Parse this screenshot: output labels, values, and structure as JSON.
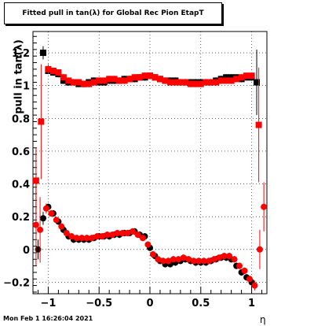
{
  "chart_data": {
    "type": "scatter",
    "title": "Fitted pull in tan(λ) for Global Rec Pion EtapT",
    "xlabel": "η",
    "ylabel": "pull in tan(λ)",
    "xlim": [
      -1.15,
      1.15
    ],
    "ylim": [
      -0.27,
      1.33
    ],
    "grid": true,
    "x_ticks": [
      -1,
      -0.5,
      0,
      0.5,
      1
    ],
    "x_tick_labels": [
      "−1",
      "−0.5",
      "0",
      "0.5",
      "1"
    ],
    "y_ticks": [
      -0.2,
      0,
      0.2,
      0.4,
      0.6,
      0.8,
      1.0,
      1.2
    ],
    "y_tick_labels": [
      "−0.2",
      "0",
      "0.2",
      "0.4",
      "0.6",
      "0.8",
      "1",
      "1.2"
    ],
    "series_colors": [
      "#000000",
      "#ff0000"
    ],
    "series": [
      {
        "marker": "square",
        "color": "#000000",
        "points": [
          [
            -1.05,
            1.2
          ],
          [
            -1.0,
            1.09
          ],
          [
            -0.95,
            1.08
          ],
          [
            -0.9,
            1.07
          ],
          [
            -0.85,
            1.03
          ],
          [
            -0.8,
            1.02
          ],
          [
            -0.75,
            1.02
          ],
          [
            -0.7,
            1.01
          ],
          [
            -0.65,
            1.01
          ],
          [
            -0.6,
            1.02
          ],
          [
            -0.55,
            1.03
          ],
          [
            -0.5,
            1.02
          ],
          [
            -0.45,
            1.02
          ],
          [
            -0.4,
            1.03
          ],
          [
            -0.35,
            1.03
          ],
          [
            -0.3,
            1.03
          ],
          [
            -0.25,
            1.04
          ],
          [
            -0.2,
            1.04
          ],
          [
            -0.15,
            1.04
          ],
          [
            -0.1,
            1.05
          ],
          [
            -0.05,
            1.05
          ],
          [
            0.0,
            1.06
          ],
          [
            0.05,
            1.05
          ],
          [
            0.1,
            1.04
          ],
          [
            0.15,
            1.03
          ],
          [
            0.2,
            1.03
          ],
          [
            0.25,
            1.03
          ],
          [
            0.3,
            1.02
          ],
          [
            0.35,
            1.02
          ],
          [
            0.4,
            1.02
          ],
          [
            0.45,
            1.02
          ],
          [
            0.5,
            1.02
          ],
          [
            0.55,
            1.02
          ],
          [
            0.6,
            1.02
          ],
          [
            0.65,
            1.03
          ],
          [
            0.7,
            1.04
          ],
          [
            0.75,
            1.05
          ],
          [
            0.8,
            1.05
          ],
          [
            0.85,
            1.05
          ],
          [
            0.9,
            1.04
          ],
          [
            0.95,
            1.05
          ],
          [
            1.0,
            1.05
          ],
          [
            1.05,
            1.02
          ]
        ],
        "errors": [
          0.04,
          0.02,
          0.02,
          0.02,
          0.02,
          0.02,
          0.02,
          0.02,
          0.02,
          0.02,
          0.02,
          0.02,
          0.02,
          0.02,
          0.02,
          0.02,
          0.02,
          0.02,
          0.02,
          0.02,
          0.02,
          0.02,
          0.02,
          0.02,
          0.02,
          0.02,
          0.02,
          0.02,
          0.02,
          0.02,
          0.02,
          0.02,
          0.02,
          0.02,
          0.02,
          0.02,
          0.02,
          0.02,
          0.02,
          0.02,
          0.02,
          0.02,
          0.2
        ]
      },
      {
        "marker": "square",
        "color": "#ff0000",
        "points": [
          [
            -1.12,
            0.42
          ],
          [
            -1.07,
            0.78
          ],
          [
            -1.0,
            1.1
          ],
          [
            -0.95,
            1.09
          ],
          [
            -0.9,
            1.08
          ],
          [
            -0.85,
            1.05
          ],
          [
            -0.8,
            1.03
          ],
          [
            -0.75,
            1.02
          ],
          [
            -0.7,
            1.02
          ],
          [
            -0.65,
            1.01
          ],
          [
            -0.6,
            1.01
          ],
          [
            -0.55,
            1.02
          ],
          [
            -0.5,
            1.03
          ],
          [
            -0.45,
            1.03
          ],
          [
            -0.4,
            1.04
          ],
          [
            -0.35,
            1.04
          ],
          [
            -0.3,
            1.03
          ],
          [
            -0.25,
            1.03
          ],
          [
            -0.2,
            1.04
          ],
          [
            -0.15,
            1.05
          ],
          [
            -0.1,
            1.05
          ],
          [
            -0.05,
            1.06
          ],
          [
            0.0,
            1.06
          ],
          [
            0.05,
            1.05
          ],
          [
            0.1,
            1.04
          ],
          [
            0.15,
            1.03
          ],
          [
            0.2,
            1.02
          ],
          [
            0.25,
            1.02
          ],
          [
            0.3,
            1.02
          ],
          [
            0.35,
            1.02
          ],
          [
            0.4,
            1.01
          ],
          [
            0.45,
            1.01
          ],
          [
            0.5,
            1.01
          ],
          [
            0.55,
            1.02
          ],
          [
            0.6,
            1.02
          ],
          [
            0.65,
            1.02
          ],
          [
            0.7,
            1.03
          ],
          [
            0.75,
            1.03
          ],
          [
            0.8,
            1.03
          ],
          [
            0.85,
            1.04
          ],
          [
            0.9,
            1.05
          ],
          [
            0.95,
            1.06
          ],
          [
            1.0,
            1.06
          ],
          [
            1.07,
            0.76
          ]
        ],
        "errors": [
          0.2,
          0.35,
          0.03,
          0.02,
          0.02,
          0.02,
          0.02,
          0.02,
          0.02,
          0.02,
          0.02,
          0.02,
          0.02,
          0.02,
          0.02,
          0.02,
          0.02,
          0.02,
          0.02,
          0.02,
          0.02,
          0.02,
          0.02,
          0.02,
          0.02,
          0.02,
          0.02,
          0.02,
          0.02,
          0.02,
          0.02,
          0.02,
          0.02,
          0.02,
          0.02,
          0.02,
          0.02,
          0.02,
          0.02,
          0.02,
          0.02,
          0.02,
          0.02,
          0.35
        ]
      },
      {
        "marker": "circle",
        "color": "#000000",
        "points": [
          [
            -1.1,
            0.0
          ],
          [
            -1.05,
            0.19
          ],
          [
            -1.0,
            0.26
          ],
          [
            -0.95,
            0.22
          ],
          [
            -0.9,
            0.17
          ],
          [
            -0.85,
            0.12
          ],
          [
            -0.8,
            0.08
          ],
          [
            -0.75,
            0.06
          ],
          [
            -0.7,
            0.06
          ],
          [
            -0.65,
            0.06
          ],
          [
            -0.6,
            0.06
          ],
          [
            -0.55,
            0.07
          ],
          [
            -0.5,
            0.08
          ],
          [
            -0.45,
            0.08
          ],
          [
            -0.4,
            0.08
          ],
          [
            -0.35,
            0.09
          ],
          [
            -0.3,
            0.09
          ],
          [
            -0.25,
            0.1
          ],
          [
            -0.2,
            0.1
          ],
          [
            -0.15,
            0.11
          ],
          [
            -0.1,
            0.09
          ],
          [
            -0.05,
            0.08
          ],
          [
            0.0,
            0.01
          ],
          [
            0.05,
            -0.04
          ],
          [
            0.1,
            -0.07
          ],
          [
            0.15,
            -0.09
          ],
          [
            0.2,
            -0.09
          ],
          [
            0.25,
            -0.08
          ],
          [
            0.3,
            -0.07
          ],
          [
            0.35,
            -0.06
          ],
          [
            0.4,
            -0.07
          ],
          [
            0.45,
            -0.08
          ],
          [
            0.5,
            -0.08
          ],
          [
            0.55,
            -0.08
          ],
          [
            0.6,
            -0.07
          ],
          [
            0.65,
            -0.06
          ],
          [
            0.7,
            -0.05
          ],
          [
            0.75,
            -0.05
          ],
          [
            0.8,
            -0.06
          ],
          [
            0.85,
            -0.1
          ],
          [
            0.9,
            -0.14
          ],
          [
            0.95,
            -0.17
          ],
          [
            1.0,
            -0.2
          ]
        ],
        "errors": [
          0.06,
          0.04,
          0.02,
          0.02,
          0.02,
          0.02,
          0.02,
          0.02,
          0.02,
          0.02,
          0.02,
          0.02,
          0.02,
          0.02,
          0.02,
          0.02,
          0.02,
          0.02,
          0.02,
          0.02,
          0.02,
          0.02,
          0.02,
          0.02,
          0.02,
          0.02,
          0.02,
          0.02,
          0.02,
          0.02,
          0.02,
          0.02,
          0.02,
          0.02,
          0.02,
          0.02,
          0.02,
          0.02,
          0.02,
          0.02,
          0.02,
          0.02,
          0.03
        ]
      },
      {
        "marker": "circle",
        "color": "#ff0000",
        "points": [
          [
            -1.12,
            0.15
          ],
          [
            -1.08,
            0.12
          ],
          [
            -1.02,
            0.25
          ],
          [
            -0.97,
            0.22
          ],
          [
            -0.92,
            0.18
          ],
          [
            -0.87,
            0.14
          ],
          [
            -0.82,
            0.1
          ],
          [
            -0.77,
            0.08
          ],
          [
            -0.72,
            0.07
          ],
          [
            -0.67,
            0.07
          ],
          [
            -0.62,
            0.07
          ],
          [
            -0.57,
            0.07
          ],
          [
            -0.52,
            0.08
          ],
          [
            -0.47,
            0.08
          ],
          [
            -0.42,
            0.09
          ],
          [
            -0.37,
            0.09
          ],
          [
            -0.32,
            0.1
          ],
          [
            -0.27,
            0.1
          ],
          [
            -0.22,
            0.1
          ],
          [
            -0.17,
            0.11
          ],
          [
            -0.12,
            0.09
          ],
          [
            -0.07,
            0.07
          ],
          [
            -0.02,
            0.03
          ],
          [
            0.03,
            -0.03
          ],
          [
            0.08,
            -0.06
          ],
          [
            0.13,
            -0.07
          ],
          [
            0.18,
            -0.07
          ],
          [
            0.23,
            -0.06
          ],
          [
            0.28,
            -0.06
          ],
          [
            0.33,
            -0.05
          ],
          [
            0.38,
            -0.06
          ],
          [
            0.43,
            -0.07
          ],
          [
            0.48,
            -0.07
          ],
          [
            0.53,
            -0.07
          ],
          [
            0.58,
            -0.07
          ],
          [
            0.63,
            -0.06
          ],
          [
            0.68,
            -0.05
          ],
          [
            0.73,
            -0.04
          ],
          [
            0.78,
            -0.04
          ],
          [
            0.83,
            -0.06
          ],
          [
            0.88,
            -0.1
          ],
          [
            0.93,
            -0.13
          ],
          [
            0.98,
            -0.18
          ],
          [
            1.03,
            -0.22
          ],
          [
            1.08,
            0.0
          ],
          [
            1.12,
            0.26
          ]
        ],
        "errors": [
          0.25,
          0.2,
          0.03,
          0.02,
          0.02,
          0.02,
          0.02,
          0.02,
          0.02,
          0.02,
          0.02,
          0.02,
          0.02,
          0.02,
          0.02,
          0.02,
          0.02,
          0.02,
          0.02,
          0.02,
          0.02,
          0.02,
          0.02,
          0.02,
          0.02,
          0.02,
          0.02,
          0.02,
          0.02,
          0.02,
          0.02,
          0.02,
          0.02,
          0.02,
          0.02,
          0.02,
          0.02,
          0.02,
          0.02,
          0.02,
          0.02,
          0.02,
          0.02,
          0.03,
          0.12,
          0.15
        ]
      }
    ]
  },
  "footer": {
    "timestamp": "Mon Feb  1 16:26:04 2021"
  }
}
